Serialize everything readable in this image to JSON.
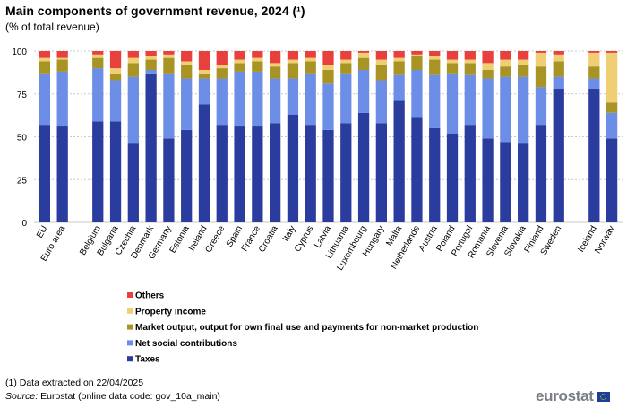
{
  "title": "Main components of government revenue, 2024 (¹)",
  "subtitle": "(% of total revenue)",
  "footnote": "(1) Data extracted  on 22/04/2025",
  "source_label": "Source:",
  "source_text": " Eurostat (online data code: gov_10a_main)",
  "logo_text": "eurostat",
  "chart_data": {
    "type": "bar",
    "stacked": true,
    "title": "Main components of government revenue, 2024 (¹)",
    "ylabel": "% of total revenue",
    "ylim": [
      0,
      100
    ],
    "yticks": [
      0,
      25,
      50,
      75,
      100
    ],
    "grid": true,
    "legend_position": "bottom-center",
    "categories": [
      "EU",
      "Euro area",
      "Belgium",
      "Bulgaria",
      "Czechia",
      "Denmark",
      "Germany",
      "Estonia",
      "Ireland",
      "Greece",
      "Spain",
      "France",
      "Croatia",
      "Italy",
      "Cyprus",
      "Latvia",
      "Lithuania",
      "Luxembourg",
      "Hungary",
      "Malta",
      "Netherlands",
      "Austria",
      "Poland",
      "Portugal",
      "Romania",
      "Slovenia",
      "Slovakia",
      "Finland",
      "Sweden",
      "Iceland",
      "Norway"
    ],
    "groups": [
      2,
      27,
      2
    ],
    "series": [
      {
        "name": "Taxes",
        "color": "#2a3d9e",
        "values": [
          57,
          56,
          59,
          59,
          46,
          87,
          49,
          54,
          69,
          57,
          56,
          56,
          58,
          63,
          57,
          54,
          58,
          64,
          58,
          71,
          61,
          55,
          52,
          57,
          49,
          47,
          46,
          57,
          78,
          78,
          49
        ]
      },
      {
        "name": "Net social contributions",
        "color": "#6c8ee6",
        "values": [
          30,
          32,
          31,
          24,
          39,
          2,
          38,
          30,
          15,
          27,
          32,
          32,
          26,
          21,
          30,
          27,
          29,
          25,
          25,
          15,
          28,
          31,
          35,
          29,
          35,
          38,
          39,
          22,
          7,
          6,
          15
        ]
      },
      {
        "name": "Market output, output for own final use and payments for non-market production",
        "color": "#a89325",
        "values": [
          7,
          7,
          6,
          4,
          8,
          6,
          9,
          8,
          3,
          6,
          5,
          6,
          7,
          9,
          7,
          8,
          6,
          7,
          9,
          8,
          8,
          9,
          6,
          7,
          5,
          6,
          7,
          12,
          9,
          7,
          6
        ]
      },
      {
        "name": "Property income",
        "color": "#f0ce73",
        "values": [
          2,
          1,
          2,
          3,
          3,
          2,
          2,
          2,
          2,
          2,
          2,
          2,
          2,
          2,
          2,
          3,
          2,
          3,
          3,
          2,
          1,
          2,
          2,
          2,
          4,
          4,
          3,
          8,
          4,
          8,
          29
        ]
      },
      {
        "name": "Others",
        "color": "#e8403d",
        "values": [
          4,
          4,
          2,
          10,
          4,
          3,
          2,
          6,
          11,
          8,
          5,
          4,
          7,
          5,
          4,
          8,
          5,
          1,
          5,
          4,
          2,
          3,
          5,
          5,
          7,
          5,
          5,
          1,
          2,
          1,
          1
        ]
      }
    ]
  }
}
